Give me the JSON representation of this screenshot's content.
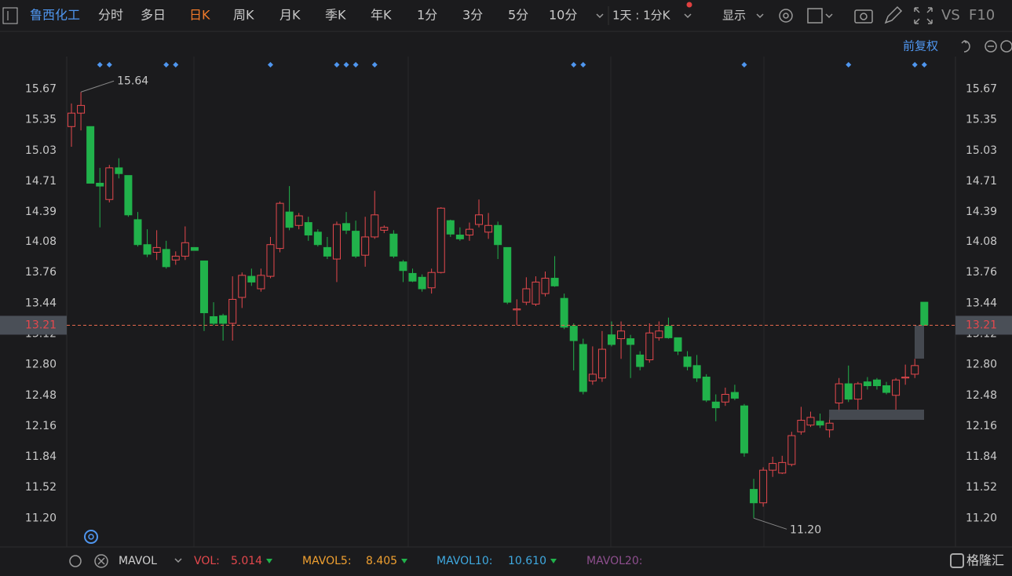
{
  "toolbar": {
    "stock": "鲁西化工",
    "periods": [
      "分时",
      "多日",
      "日K",
      "周K",
      "月K",
      "季K",
      "年K",
      "1分",
      "3分",
      "5分",
      "10分"
    ],
    "active_period": "日K",
    "interval": "1天 : 1分K",
    "display": "显示",
    "vs": "VS",
    "f10": "F10",
    "adjust": "前复权"
  },
  "chart_data": {
    "type": "candlestick",
    "up_color": "#e5484d",
    "down_color": "#21b24b",
    "ylim": [
      10.9,
      16.01
    ],
    "yticks": [
      15.67,
      15.35,
      15.03,
      14.71,
      14.39,
      14.08,
      13.76,
      13.44,
      13.12,
      {
        "value": 12.8,
        "label": "12.80"
      },
      12.48,
      12.16,
      11.84,
      11.52,
      {
        "value": 11.2,
        "label": "11.20"
      }
    ],
    "open": [
      15.28,
      15.42,
      15.28,
      14.69,
      14.52,
      14.85,
      14.77,
      14.31,
      14.05,
      13.97,
      14.0,
      13.89,
      13.93,
      14.02,
      13.88,
      13.3,
      13.31,
      13.23,
      13.5,
      13.72,
      13.59,
      13.72,
      14.01,
      14.39,
      14.25,
      14.28,
      14.18,
      14.02,
      13.9,
      14.27,
      14.19,
      13.94,
      14.13,
      14.2,
      14.16,
      13.87,
      13.75,
      13.71,
      13.6,
      13.76,
      14.3,
      14.15,
      14.15,
      14.26,
      14.18,
      14.25,
      14.02,
      13.37,
      13.45,
      13.43,
      13.54,
      13.7,
      13.49,
      13.2,
      13.01,
      12.63,
      12.66,
      13.11,
      13.07,
      13.07,
      12.9,
      12.85,
      13.08,
      13.2,
      13.08,
      12.88,
      12.79,
      12.67,
      12.41,
      12.41,
      12.51,
      12.37,
      11.5,
      11.36,
      11.7,
      11.67,
      11.76,
      12.1,
      12.17,
      12.21,
      12.12,
      12.4,
      12.6,
      12.44,
      12.62,
      12.64,
      12.58,
      12.48,
      12.66,
      12.7,
      13.45
    ],
    "high": [
      15.52,
      15.64,
      15.28,
      14.85,
      14.88,
      14.95,
      14.77,
      14.39,
      14.21,
      14.2,
      14.09,
      13.98,
      14.24,
      14.02,
      13.88,
      13.45,
      13.33,
      13.72,
      13.76,
      13.8,
      13.8,
      14.13,
      14.5,
      14.66,
      14.38,
      14.34,
      14.21,
      14.13,
      14.29,
      14.39,
      14.3,
      14.34,
      14.61,
      14.25,
      14.2,
      13.89,
      13.8,
      13.74,
      13.8,
      14.44,
      14.31,
      14.23,
      14.28,
      14.52,
      14.38,
      14.29,
      14.02,
      13.48,
      13.71,
      13.72,
      13.77,
      13.93,
      13.54,
      13.23,
      13.07,
      12.99,
      13.15,
      13.25,
      13.25,
      13.11,
      12.94,
      13.23,
      13.25,
      13.29,
      13.08,
      12.94,
      12.9,
      12.7,
      12.49,
      12.56,
      12.59,
      12.39,
      11.61,
      11.73,
      11.84,
      11.85,
      12.1,
      12.36,
      12.31,
      12.29,
      12.25,
      12.66,
      12.79,
      12.62,
      12.67,
      12.66,
      12.62,
      12.66,
      12.8,
      12.86,
      13.45
    ],
    "low": [
      15.07,
      15.24,
      14.69,
      14.23,
      14.49,
      14.74,
      14.34,
      14.03,
      13.92,
      13.89,
      13.8,
      13.84,
      13.89,
      13.99,
      13.15,
      13.21,
      13.05,
      13.05,
      13.39,
      13.62,
      13.56,
      13.7,
      13.97,
      14.2,
      14.21,
      14.09,
      14.03,
      13.9,
      13.66,
      14.16,
      13.91,
      13.82,
      14.11,
      14.17,
      13.91,
      13.66,
      13.66,
      13.56,
      13.54,
      13.75,
      14.13,
      14.09,
      14.09,
      14.23,
      14.11,
      13.9,
      13.43,
      13.21,
      13.42,
      13.41,
      13.51,
      13.61,
      13.17,
      12.74,
      12.49,
      12.59,
      12.62,
      12.99,
      12.86,
      12.66,
      12.74,
      12.82,
      13.05,
      13.07,
      12.9,
      12.74,
      12.62,
      12.41,
      12.21,
      12.37,
      12.43,
      11.84,
      11.2,
      11.32,
      11.63,
      11.66,
      11.74,
      12.07,
      12.15,
      12.14,
      12.04,
      12.31,
      12.41,
      12.33,
      12.54,
      12.54,
      12.49,
      12.33,
      12.59,
      12.66,
      13.21
    ],
    "close": [
      15.42,
      15.5,
      14.69,
      14.66,
      14.85,
      14.79,
      14.36,
      14.05,
      13.95,
      14.02,
      13.82,
      13.93,
      14.07,
      13.99,
      13.34,
      13.23,
      13.23,
      13.48,
      13.73,
      13.66,
      13.73,
      14.05,
      14.48,
      14.23,
      14.35,
      14.15,
      14.05,
      13.93,
      14.26,
      14.2,
      13.93,
      14.13,
      14.36,
      14.23,
      13.93,
      13.78,
      13.67,
      13.59,
      13.76,
      14.43,
      14.16,
      14.11,
      14.21,
      14.36,
      14.25,
      14.05,
      13.45,
      13.38,
      13.59,
      13.66,
      13.7,
      13.62,
      13.19,
      13.05,
      12.52,
      12.7,
      12.96,
      13.01,
      13.15,
      13.01,
      12.78,
      13.13,
      13.15,
      13.08,
      12.94,
      12.78,
      12.66,
      12.43,
      12.35,
      12.49,
      12.45,
      11.88,
      11.36,
      11.7,
      11.77,
      11.78,
      12.06,
      12.22,
      12.25,
      12.17,
      12.19,
      12.6,
      12.44,
      12.6,
      12.58,
      12.58,
      12.51,
      12.64,
      12.67,
      12.79,
      13.21
    ],
    "event_markers": [
      3,
      4,
      10,
      11,
      21,
      28,
      29,
      30,
      32,
      53,
      54,
      71,
      82,
      89,
      90
    ],
    "high_label": 15.64,
    "low_label": {
      "value": 11.2,
      "label": "11.20"
    },
    "last_price": 13.21
  },
  "indicator": {
    "name": "MAVOL",
    "vol_label": "VOL:",
    "vol": 5.014,
    "ma5_label": "MAVOL5:",
    "ma5": 8.405,
    "ma10_label": "MAVOL10:",
    "ma10": {
      "value": 10.61,
      "label": "10.610"
    },
    "ma20_label": "MAVOL20:"
  },
  "brand": "格隆汇"
}
